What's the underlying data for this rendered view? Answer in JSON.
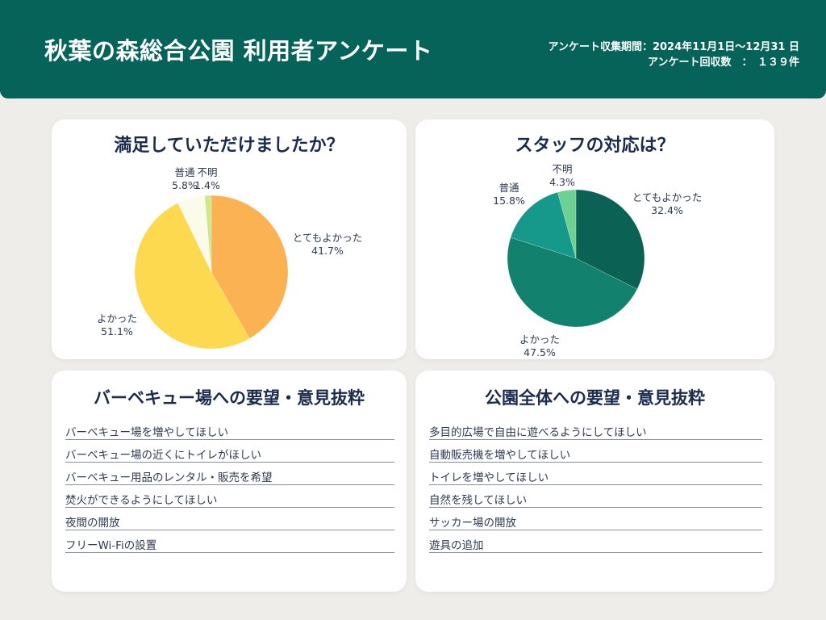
{
  "header": {
    "title": "秋葉の森総合公園 利用者アンケート",
    "meta_line1": "アンケート収集期間：2024年11月1日～12月31 日",
    "meta_line2": "アンケート回収数　：　１３９件"
  },
  "chart_data": [
    {
      "type": "pie",
      "title": "満足していただけましたか？",
      "start_angle_deg": -90,
      "direction": "clockwise",
      "legend": "none",
      "slices": [
        {
          "label": "とてもよかった",
          "pct": "41.7%",
          "value": 41.7,
          "color": "#FAB252"
        },
        {
          "label": "よかった",
          "pct": "51.1%",
          "value": 51.1,
          "color": "#FDD950"
        },
        {
          "label": "普通",
          "pct": "5.8%",
          "value": 5.8,
          "color": "#FBFBEA"
        },
        {
          "label": "不明",
          "pct": "1.4%",
          "value": 1.4,
          "color": "#D0E88C"
        }
      ]
    },
    {
      "type": "pie",
      "title": "スタッフの対応は？",
      "start_angle_deg": -90,
      "direction": "clockwise",
      "legend": "none",
      "slices": [
        {
          "label": "とてもよかった",
          "pct": "32.4%",
          "value": 32.4,
          "color": "#0B6153"
        },
        {
          "label": "よかった",
          "pct": "47.5%",
          "value": 47.5,
          "color": "#12816E"
        },
        {
          "label": "普通",
          "pct": "15.8%",
          "value": 15.8,
          "color": "#16998B"
        },
        {
          "label": "不明",
          "pct": "4.3%",
          "value": 4.3,
          "color": "#6CD193"
        }
      ]
    }
  ],
  "lists": [
    {
      "title": "バーベキュー場への要望・意見抜粋",
      "items": [
        "バーベキュー場を増やしてほしい",
        "バーベキュー場の近くにトイレがほしい",
        "バーベキュー用品のレンタル・販売を希望",
        "焚火ができるようにしてほしい",
        "夜間の開放",
        "フリーWi-Fiの設置"
      ]
    },
    {
      "title": "公園全体への要望・意見抜粋",
      "items": [
        "多目的広場で自由に遊べるようにしてほしい",
        "自動販売機を増やしてほしい",
        "トイレを増やしてほしい",
        "自然を残してほしい",
        "サッカー場の開放",
        "遊具の追加"
      ]
    }
  ],
  "colors": {
    "header_bg": "#06635A",
    "page_bg": "#EFEDEA",
    "card_bg": "#FFFFFF",
    "title_text": "#1B2B4D",
    "body_text": "#2E3A52",
    "divider": "#8A8E99"
  }
}
